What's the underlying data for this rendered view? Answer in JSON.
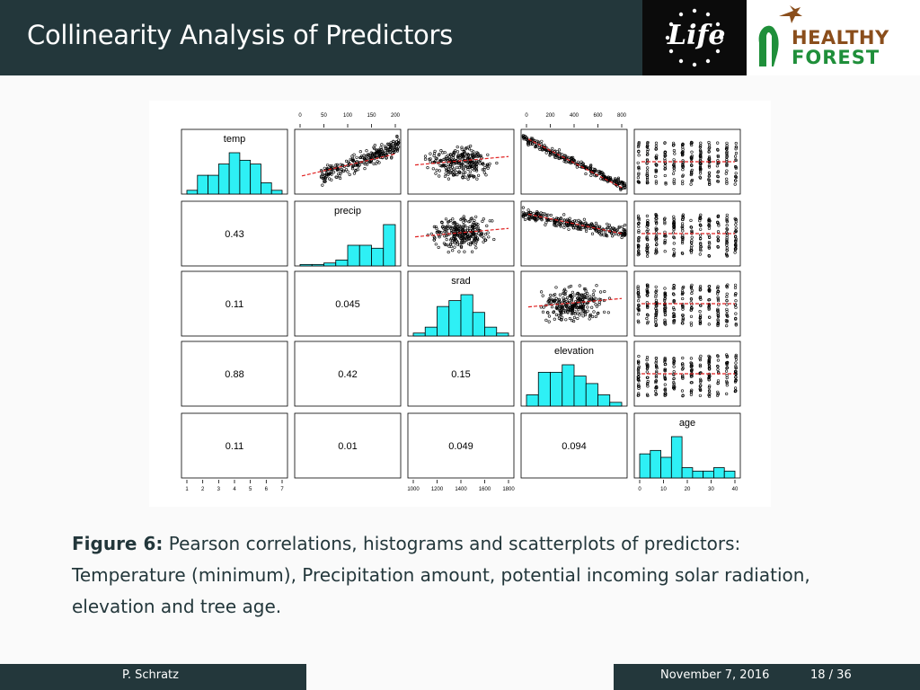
{
  "slide": {
    "title": "Collinearity Analysis of Predictors",
    "logos": {
      "life": "Life",
      "hf_line1": "HEALTHY",
      "hf_line2": "FOREST"
    },
    "caption_label": "Figure 6:",
    "caption_text": " Pearson correlations, histograms and scatterplots of predictors: Temperature (minimum), Precipitation amount, potential incoming solar radiation, elevation and tree age."
  },
  "footer": {
    "author": "P. Schratz",
    "date": "November 7, 2016",
    "page": "18 / 36"
  },
  "colors": {
    "header_bg": "#23373b",
    "hist_fill": "#2ef0f5",
    "smoother": "#e02020"
  },
  "chart_data": {
    "type": "scatter",
    "variables": [
      "temp",
      "precip",
      "srad",
      "elevation",
      "age"
    ],
    "correlations": [
      {
        "row": 1,
        "col": 0,
        "value": "0.43"
      },
      {
        "row": 2,
        "col": 0,
        "value": "0.11"
      },
      {
        "row": 2,
        "col": 1,
        "value": "0.045"
      },
      {
        "row": 3,
        "col": 0,
        "value": "0.88"
      },
      {
        "row": 3,
        "col": 1,
        "value": "0.42"
      },
      {
        "row": 3,
        "col": 2,
        "value": "0.15"
      },
      {
        "row": 4,
        "col": 0,
        "value": "0.11"
      },
      {
        "row": 4,
        "col": 1,
        "value": "0.01"
      },
      {
        "row": 4,
        "col": 2,
        "value": "0.049"
      },
      {
        "row": 4,
        "col": 3,
        "value": "0.094"
      }
    ],
    "histograms": {
      "temp": [
        1,
        5,
        5,
        8,
        11,
        9,
        8,
        3,
        1
      ],
      "precip": [
        0.5,
        0.5,
        1,
        2,
        7,
        7,
        6,
        14
      ],
      "srad": [
        1,
        3,
        10,
        12,
        14,
        8,
        3,
        1
      ],
      "elevation": [
        3,
        9,
        9,
        11,
        8,
        6,
        3,
        1
      ],
      "age": [
        7,
        8,
        6,
        12,
        3,
        2,
        2,
        3,
        2
      ]
    },
    "scatter_trend": [
      {
        "row": 0,
        "col": 1,
        "type": "up"
      },
      {
        "row": 0,
        "col": 2,
        "type": "cloud"
      },
      {
        "row": 0,
        "col": 3,
        "type": "down"
      },
      {
        "row": 0,
        "col": 4,
        "type": "vertical"
      },
      {
        "row": 1,
        "col": 2,
        "type": "cloud"
      },
      {
        "row": 1,
        "col": 3,
        "type": "down-weak"
      },
      {
        "row": 1,
        "col": 4,
        "type": "vertical"
      },
      {
        "row": 2,
        "col": 3,
        "type": "cloud"
      },
      {
        "row": 2,
        "col": 4,
        "type": "vertical"
      },
      {
        "row": 3,
        "col": 4,
        "type": "vertical"
      }
    ],
    "axis_ticks": {
      "bottom_col0": [
        "1",
        "2",
        "3",
        "4",
        "5",
        "6",
        "7"
      ],
      "bottom_col2": [
        "1000",
        "1200",
        "1400",
        "1600",
        "1800"
      ],
      "bottom_col4": [
        "0",
        "10",
        "20",
        "30",
        "40"
      ],
      "top_col1": [
        "0",
        "50",
        "100",
        "150",
        "200"
      ],
      "top_col3": [
        "0",
        "200",
        "400",
        "600",
        "800"
      ]
    }
  }
}
